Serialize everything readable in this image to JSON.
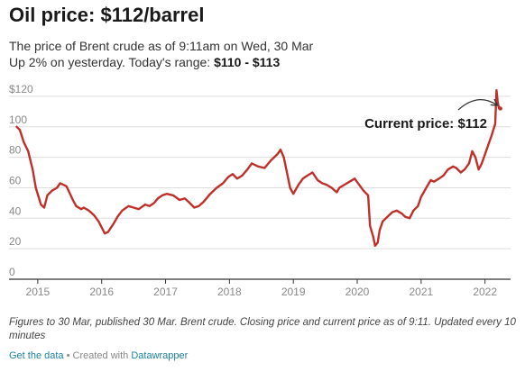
{
  "header": {
    "title": "Oil price: $112/barrel",
    "subtitle_line1": "The price of Brent crude as of 9:11am on Wed, 30 Mar",
    "subtitle_line2_prefix": "Up 2% on yesterday. Today's range: ",
    "subtitle_line2_range": "$110 - $113"
  },
  "notes": "Figures to 30 Mar, published 30 Mar. Brent crude. Closing price and current price as of 9:11. Updated every 10 minutes",
  "footer": {
    "get_data_label": "Get the data",
    "separator": " • Created with ",
    "datawrapper_label": "Datawrapper"
  },
  "colors": {
    "line": "#c0302b",
    "grid": "#dddddd",
    "axis": "#333333",
    "tick_text": "#888888",
    "link": "#1d81a2"
  },
  "chart_data": {
    "type": "line",
    "title": "Oil price: $112/barrel",
    "xlabel": "",
    "ylabel": "",
    "ylim": [
      0,
      130
    ],
    "xlim": [
      2014.55,
      2022.4
    ],
    "y_ticks": [
      {
        "value": 0,
        "label": "0"
      },
      {
        "value": 20,
        "label": "20"
      },
      {
        "value": 40,
        "label": "40"
      },
      {
        "value": 60,
        "label": "60"
      },
      {
        "value": 80,
        "label": "80"
      },
      {
        "value": 100,
        "label": "100"
      },
      {
        "value": 120,
        "label": "$120"
      }
    ],
    "x_ticks": [
      {
        "value": 2015,
        "label": "2015"
      },
      {
        "value": 2016,
        "label": "2016"
      },
      {
        "value": 2017,
        "label": "2017"
      },
      {
        "value": 2018,
        "label": "2018"
      },
      {
        "value": 2019,
        "label": "2019"
      },
      {
        "value": 2020,
        "label": "2020"
      },
      {
        "value": 2021,
        "label": "2021"
      },
      {
        "value": 2022,
        "label": "2022"
      }
    ],
    "grid": true,
    "series": [
      {
        "x": [
          2014.67,
          2014.72,
          2014.78,
          2014.85,
          2014.92,
          2014.97,
          2015.05,
          2015.1,
          2015.15,
          2015.22,
          2015.3,
          2015.35,
          2015.45,
          2015.55,
          2015.6,
          2015.68,
          2015.72,
          2015.8,
          2015.88,
          2015.95,
          2016.0,
          2016.05,
          2016.1,
          2016.18,
          2016.25,
          2016.32,
          2016.42,
          2016.5,
          2016.58,
          2016.68,
          2016.75,
          2016.82,
          2016.88,
          2016.95,
          2017.02,
          2017.12,
          2017.22,
          2017.3,
          2017.38,
          2017.45,
          2017.52,
          2017.6,
          2017.7,
          2017.8,
          2017.9,
          2017.98,
          2018.05,
          2018.12,
          2018.2,
          2018.28,
          2018.35,
          2018.45,
          2018.55,
          2018.65,
          2018.75,
          2018.8,
          2018.85,
          2018.9,
          2018.95,
          2019.0,
          2019.08,
          2019.15,
          2019.22,
          2019.3,
          2019.38,
          2019.45,
          2019.52,
          2019.6,
          2019.68,
          2019.72,
          2019.8,
          2019.88,
          2019.96,
          2020.03,
          2020.1,
          2020.17,
          2020.2,
          2020.25,
          2020.28,
          2020.32,
          2020.35,
          2020.4,
          2020.45,
          2020.5,
          2020.55,
          2020.62,
          2020.7,
          2020.75,
          2020.82,
          2020.88,
          2020.95,
          2021.0,
          2021.08,
          2021.15,
          2021.2,
          2021.28,
          2021.35,
          2021.42,
          2021.5,
          2021.55,
          2021.62,
          2021.68,
          2021.75,
          2021.8,
          2021.85,
          2021.9,
          2021.95,
          2022.0,
          2022.05,
          2022.1,
          2022.13,
          2022.16,
          2022.18,
          2022.2,
          2022.22,
          2022.24
        ],
        "values": [
          100,
          98,
          90,
          84,
          72,
          60,
          49,
          47,
          55,
          58,
          60,
          63,
          61,
          52,
          48,
          46,
          47,
          45,
          42,
          38,
          34,
          30,
          31,
          36,
          41,
          45,
          48,
          47,
          46,
          49,
          48,
          50,
          53,
          55,
          56,
          55,
          52,
          53,
          50,
          47,
          48,
          51,
          56,
          60,
          63,
          67,
          69,
          66,
          68,
          72,
          76,
          74,
          73,
          78,
          82,
          85,
          80,
          70,
          60,
          56,
          62,
          66,
          68,
          70,
          65,
          63,
          62,
          60,
          57,
          60,
          62,
          64,
          66,
          62,
          58,
          55,
          35,
          28,
          22,
          24,
          32,
          38,
          40,
          42,
          44,
          45,
          43,
          41,
          40,
          45,
          48,
          54,
          60,
          65,
          64,
          66,
          68,
          72,
          74,
          73,
          70,
          72,
          76,
          84,
          80,
          72,
          76,
          82,
          88,
          94,
          98,
          102,
          124,
          116,
          112,
          112
        ]
      }
    ],
    "annotation": {
      "text": "Current price: $112",
      "x": 2022.24,
      "y": 112
    }
  }
}
